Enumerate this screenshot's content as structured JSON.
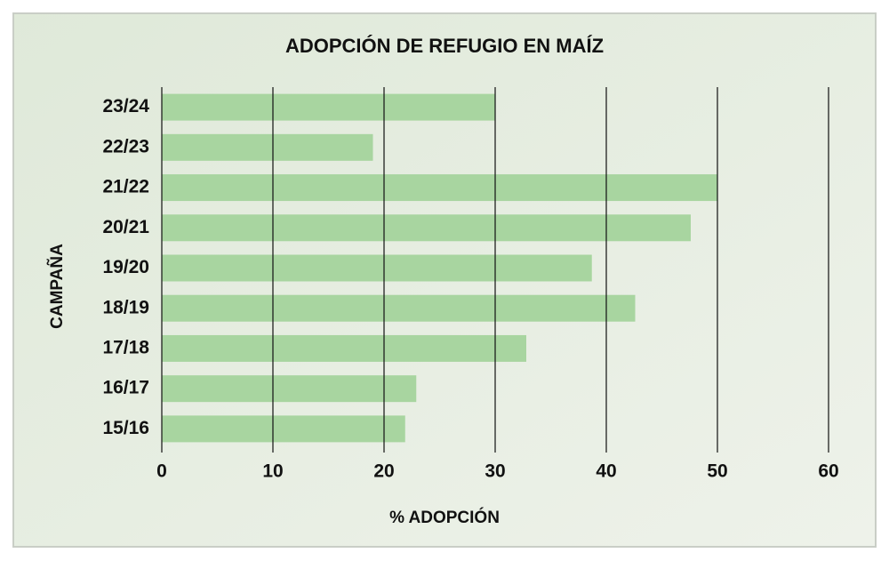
{
  "chart_data": {
    "type": "bar",
    "orientation": "horizontal",
    "title": "ADOPCIÓN DE REFUGIO EN MAÍZ",
    "x_label": "% ADOPCIÓN",
    "y_label": "CAMPAÑA",
    "categories": [
      "23/24",
      "22/23",
      "21/22",
      "20/21",
      "19/20",
      "18/19",
      "17/18",
      "16/17",
      "15/16"
    ],
    "values": [
      30,
      19,
      50,
      47.6,
      38.7,
      42.6,
      32.8,
      22.9,
      21.9
    ],
    "color": "#a8d5a0",
    "xlim": [
      0,
      60
    ],
    "xticks": [
      0,
      10,
      20,
      30,
      40,
      50,
      60
    ],
    "grid": true
  }
}
